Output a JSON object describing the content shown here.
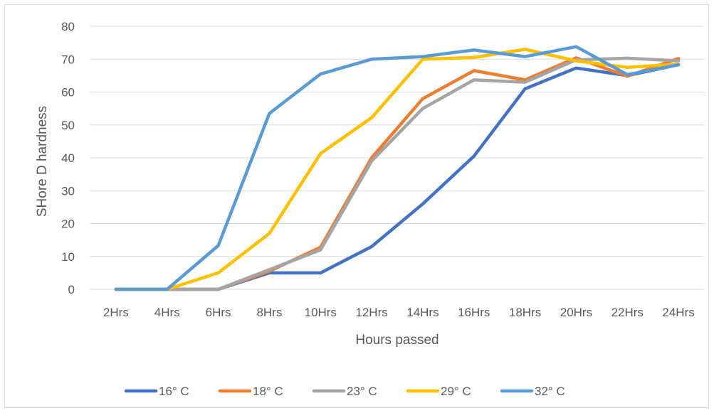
{
  "chart_data": {
    "type": "line",
    "title": "",
    "xlabel": "Hours passed",
    "ylabel": "SHore D hardness",
    "ylim": [
      0,
      80
    ],
    "yticks": [
      0,
      10,
      20,
      30,
      40,
      50,
      60,
      70,
      80
    ],
    "grid": "horizontal",
    "legend_position": "bottom",
    "categories": [
      "2Hrs",
      "4Hrs",
      "6Hrs",
      "8Hrs",
      "10Hrs",
      "12Hrs",
      "14Hrs",
      "16Hrs",
      "18Hrs",
      "20Hrs",
      "22Hrs",
      "24Hrs"
    ],
    "series": [
      {
        "name": "16° C",
        "color": "#4472C4",
        "values": [
          0,
          0,
          0,
          5,
          5,
          13,
          26,
          40.5,
          61,
          67.3,
          65,
          68.3
        ]
      },
      {
        "name": "18° C",
        "color": "#ED7D31",
        "values": [
          0,
          0,
          0,
          5.5,
          12.8,
          40,
          58,
          66.5,
          63.7,
          70.4,
          64.8,
          70.2
        ]
      },
      {
        "name": "23° C",
        "color": "#A5A5A5",
        "values": [
          0,
          0,
          0,
          6,
          12,
          39,
          55,
          63.7,
          63,
          69.8,
          70.3,
          69.5
        ]
      },
      {
        "name": "29° C",
        "color": "#FFC000",
        "values": [
          0,
          0,
          5,
          17,
          41.3,
          52.2,
          70,
          70.5,
          73,
          69.5,
          67.5,
          68.5
        ]
      },
      {
        "name": "32° C",
        "color": "#5B9BD5",
        "values": [
          0,
          0,
          13.3,
          53.5,
          65.5,
          70,
          70.8,
          72.8,
          70.8,
          73.8,
          65.3,
          68.3
        ]
      }
    ]
  }
}
